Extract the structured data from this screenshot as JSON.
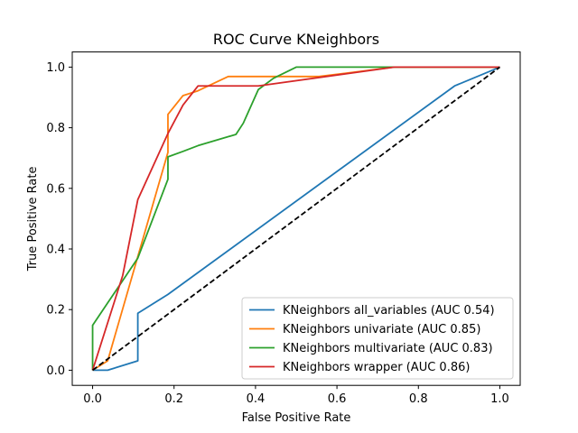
{
  "chart_data": {
    "type": "line",
    "title": "ROC Curve KNeighbors",
    "xlabel": "False Positive Rate",
    "ylabel": "True Positive Rate",
    "xlim": [
      -0.05,
      1.05
    ],
    "ylim": [
      -0.05,
      1.05
    ],
    "xticks": [
      "0.0",
      "0.2",
      "0.4",
      "0.6",
      "0.8",
      "1.0"
    ],
    "yticks": [
      "0.0",
      "0.2",
      "0.4",
      "0.6",
      "0.8",
      "1.0"
    ],
    "grid": false,
    "legend_position": "lower-right",
    "diagonal": {
      "x": [
        0,
        1
      ],
      "y": [
        0,
        1
      ],
      "color": "#000000",
      "style": "dashed"
    },
    "series": [
      {
        "name": "KNeighbors all_variables (AUC 0.54)",
        "color": "#1f77b4",
        "x": [
          0.0,
          0.037,
          0.111,
          0.111,
          0.185,
          0.889,
          1.0
        ],
        "y": [
          0.0,
          0.0,
          0.031,
          0.188,
          0.25,
          0.938,
          1.0
        ]
      },
      {
        "name": "KNeighbors univariate (AUC 0.85)",
        "color": "#ff7f0e",
        "x": [
          0.0,
          0.037,
          0.185,
          0.185,
          0.222,
          0.259,
          0.333,
          0.407,
          0.556,
          0.741,
          1.0
        ],
        "y": [
          0.0,
          0.031,
          0.719,
          0.844,
          0.906,
          0.922,
          0.969,
          0.969,
          0.969,
          1.0,
          1.0
        ]
      },
      {
        "name": "KNeighbors multivariate (AUC 0.83)",
        "color": "#2ca02c",
        "x": [
          0.0,
          0.0,
          0.037,
          0.111,
          0.185,
          0.185,
          0.222,
          0.259,
          0.352,
          0.37,
          0.407,
          0.444,
          0.5,
          0.741,
          1.0
        ],
        "y": [
          0.0,
          0.148,
          0.222,
          0.37,
          0.63,
          0.704,
          0.722,
          0.741,
          0.778,
          0.815,
          0.926,
          0.963,
          1.0,
          1.0,
          1.0
        ]
      },
      {
        "name": "KNeighbors wrapper (AUC 0.86)",
        "color": "#d62728",
        "x": [
          0.0,
          0.074,
          0.111,
          0.185,
          0.222,
          0.259,
          0.407,
          0.741,
          1.0
        ],
        "y": [
          0.0,
          0.313,
          0.563,
          0.781,
          0.875,
          0.938,
          0.938,
          1.0,
          1.0
        ]
      }
    ]
  }
}
